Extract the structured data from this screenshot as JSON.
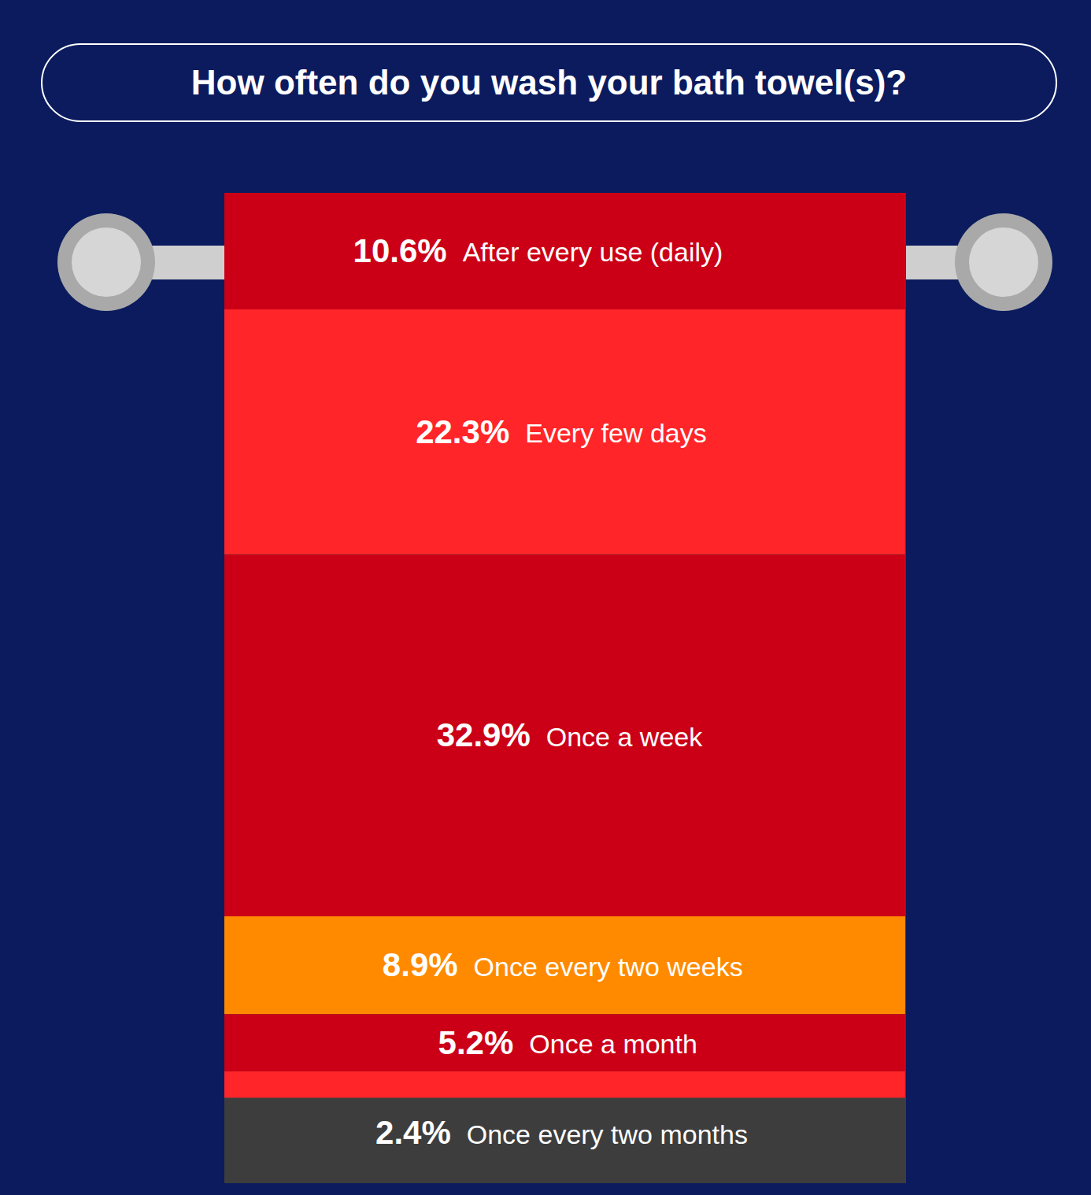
{
  "chart_data": {
    "type": "bar",
    "stacked": true,
    "title": "How often do you wash your bath towel(s)?",
    "categories": [
      "After every use (daily)",
      "Every few days",
      "Once a week",
      "Once every two weeks",
      "Once a month",
      "Once every two months"
    ],
    "values": [
      10.6,
      22.3,
      32.9,
      8.9,
      5.2,
      2.4
    ],
    "value_labels": [
      "10.6%",
      "22.3%",
      "32.9%",
      "8.9%",
      "5.2%",
      "2.4%"
    ],
    "colors": [
      "#cb0017",
      "#ff2528",
      "#cb0017",
      "#ff8a00",
      "#cb0017",
      "#ff2528"
    ],
    "ylim": [
      0,
      90
    ],
    "yticks": [],
    "tick_labels": false,
    "data_labels": true
  }
}
